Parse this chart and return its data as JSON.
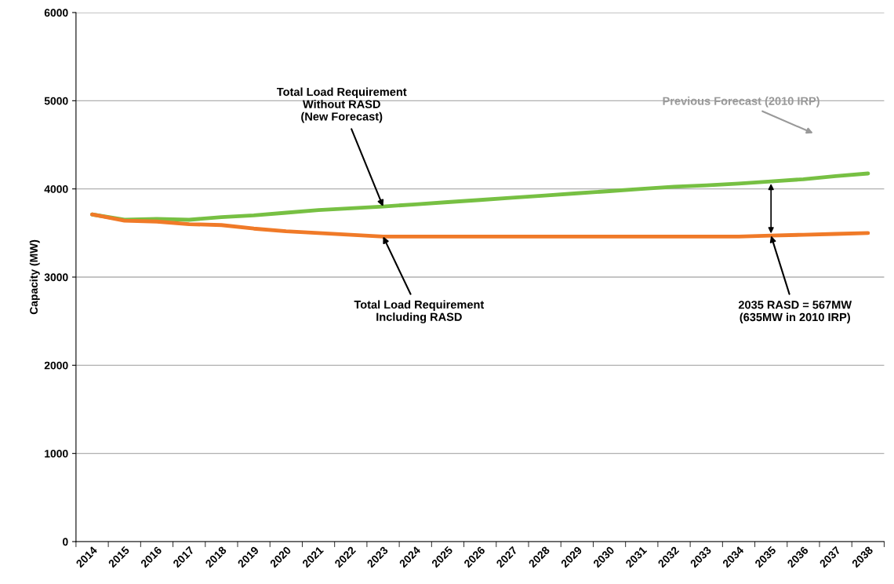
{
  "chart_data": {
    "type": "line",
    "ylabel": "Capacity (MW)",
    "categories": [
      "2014",
      "2015",
      "2016",
      "2017",
      "2018",
      "2019",
      "2020",
      "2021",
      "2022",
      "2023",
      "2024",
      "2025",
      "2026",
      "2027",
      "2028",
      "2029",
      "2030",
      "2031",
      "2032",
      "2033",
      "2034",
      "2035",
      "2036",
      "2037",
      "2038"
    ],
    "series": [
      {
        "color": "#77c043",
        "values": [
          3710,
          3650,
          3660,
          3650,
          3680,
          3700,
          3730,
          3760,
          3780,
          3800,
          3825,
          3850,
          3875,
          3900,
          3925,
          3950,
          3975,
          4000,
          4025,
          4040,
          4060,
          4085,
          4110,
          4145,
          4175
        ]
      },
      {
        "color": "#f07a28",
        "values": [
          3710,
          3640,
          3630,
          3600,
          3590,
          3550,
          3520,
          3500,
          3480,
          3460,
          3460,
          3460,
          3460,
          3460,
          3460,
          3460,
          3460,
          3460,
          3460,
          3460,
          3460,
          3470,
          3480,
          3490,
          3500
        ]
      }
    ],
    "ylim": [
      0,
      6000
    ],
    "yticks": [
      0,
      1000,
      2000,
      3000,
      4000,
      5000,
      6000
    ],
    "grid": "y",
    "marker": "none",
    "line_style": "solid",
    "annotations": [
      {
        "text": "Total Load Requirement\nWithout RASD\n(New Forecast)",
        "x": "2023",
        "y": 3800
      },
      {
        "text": "Total Load Requirement\nIncluding RASD",
        "x": "2023",
        "y": 3460
      },
      {
        "text": "2035 RASD = 567MW\n(635MW in 2010 IRP)",
        "x": "2035",
        "y": 3470
      },
      "Previous Forecast (2010 IRP)"
    ]
  }
}
